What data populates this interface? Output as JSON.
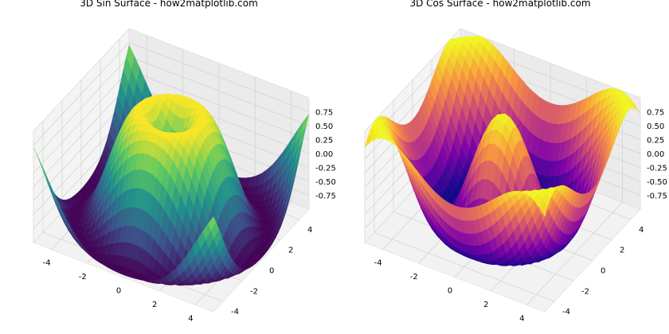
{
  "chart_data": [
    {
      "type": "surface",
      "title": "3D Sin Surface - how2matplotlib.com",
      "function": "sin(sqrt(x^2 + y^2))",
      "colormap": "viridis",
      "colormap_stops": [
        "#440154",
        "#3b528b",
        "#21918c",
        "#5ec962",
        "#fde725"
      ],
      "x_range": [
        -5,
        5
      ],
      "y_range": [
        -5,
        5
      ],
      "z_range": [
        -1,
        1
      ],
      "x_ticks": [
        "-4",
        "-2",
        "0",
        "2",
        "4"
      ],
      "y_ticks": [
        "-4",
        "-2",
        "0",
        "2",
        "4"
      ],
      "z_ticks": [
        "-0.75",
        "-0.50",
        "-0.25",
        "0.00",
        "0.25",
        "0.50",
        "0.75"
      ],
      "grid": true
    },
    {
      "type": "surface",
      "title": "3D Cos Surface - how2matplotlib.com",
      "function": "cos(sqrt(x^2 + y^2))",
      "colormap": "plasma",
      "colormap_stops": [
        "#0d0887",
        "#7e03a8",
        "#cc4778",
        "#f89540",
        "#f0f921"
      ],
      "x_range": [
        -5,
        5
      ],
      "y_range": [
        -5,
        5
      ],
      "z_range": [
        -1,
        1
      ],
      "x_ticks": [
        "-4",
        "-2",
        "0",
        "2",
        "4"
      ],
      "y_ticks": [
        "-4",
        "-2",
        "0",
        "2",
        "4"
      ],
      "z_ticks": [
        "-0.75",
        "-0.50",
        "-0.25",
        "0.00",
        "0.25",
        "0.50",
        "0.75"
      ],
      "grid": true
    }
  ]
}
